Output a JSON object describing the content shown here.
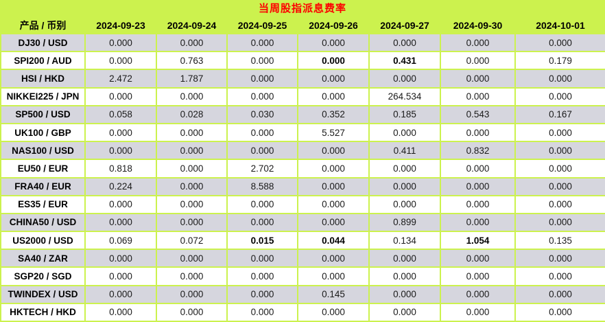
{
  "title": "当周股指派息费率",
  "colors": {
    "theme_green": "#ccf24e",
    "title_red": "#fe0000",
    "row_gray": "#d6d6de",
    "row_white": "#ffffff",
    "text_dark": "#1a1a1a"
  },
  "table": {
    "product_header": "产品 / 币别",
    "date_headers": [
      "2024-09-23",
      "2024-09-24",
      "2024-09-25",
      "2024-09-26",
      "2024-09-27",
      "2024-09-30",
      "2024-10-01"
    ],
    "rows": [
      {
        "product": "DJ30 / USD",
        "values": [
          "0.000",
          "0.000",
          "0.000",
          "0.000",
          "0.000",
          "0.000",
          "0.000"
        ],
        "bold": []
      },
      {
        "product": "SPI200 / AUD",
        "values": [
          "0.000",
          "0.763",
          "0.000",
          "0.000",
          "0.431",
          "0.000",
          "0.179"
        ],
        "bold": [
          3,
          4
        ]
      },
      {
        "product": "HSI / HKD",
        "values": [
          "2.472",
          "1.787",
          "0.000",
          "0.000",
          "0.000",
          "0.000",
          "0.000"
        ],
        "bold": []
      },
      {
        "product": "NIKKEI225 / JPN",
        "values": [
          "0.000",
          "0.000",
          "0.000",
          "0.000",
          "264.534",
          "0.000",
          "0.000"
        ],
        "bold": []
      },
      {
        "product": "SP500 / USD",
        "values": [
          "0.058",
          "0.028",
          "0.030",
          "0.352",
          "0.185",
          "0.543",
          "0.167"
        ],
        "bold": []
      },
      {
        "product": "UK100 / GBP",
        "values": [
          "0.000",
          "0.000",
          "0.000",
          "5.527",
          "0.000",
          "0.000",
          "0.000"
        ],
        "bold": []
      },
      {
        "product": "NAS100 / USD",
        "values": [
          "0.000",
          "0.000",
          "0.000",
          "0.000",
          "0.411",
          "0.832",
          "0.000"
        ],
        "bold": []
      },
      {
        "product": "EU50 / EUR",
        "values": [
          "0.818",
          "0.000",
          "2.702",
          "0.000",
          "0.000",
          "0.000",
          "0.000"
        ],
        "bold": []
      },
      {
        "product": "FRA40 / EUR",
        "values": [
          "0.224",
          "0.000",
          "8.588",
          "0.000",
          "0.000",
          "0.000",
          "0.000"
        ],
        "bold": []
      },
      {
        "product": "ES35 / EUR",
        "values": [
          "0.000",
          "0.000",
          "0.000",
          "0.000",
          "0.000",
          "0.000",
          "0.000"
        ],
        "bold": []
      },
      {
        "product": "CHINA50 / USD",
        "values": [
          "0.000",
          "0.000",
          "0.000",
          "0.000",
          "0.899",
          "0.000",
          "0.000"
        ],
        "bold": []
      },
      {
        "product": "US2000 / USD",
        "values": [
          "0.069",
          "0.072",
          "0.015",
          "0.044",
          "0.134",
          "1.054",
          "0.135"
        ],
        "bold": [
          2,
          3,
          5
        ]
      },
      {
        "product": "SA40 / ZAR",
        "values": [
          "0.000",
          "0.000",
          "0.000",
          "0.000",
          "0.000",
          "0.000",
          "0.000"
        ],
        "bold": []
      },
      {
        "product": "SGP20 / SGD",
        "values": [
          "0.000",
          "0.000",
          "0.000",
          "0.000",
          "0.000",
          "0.000",
          "0.000"
        ],
        "bold": []
      },
      {
        "product": "TWINDEX / USD",
        "values": [
          "0.000",
          "0.000",
          "0.000",
          "0.145",
          "0.000",
          "0.000",
          "0.000"
        ],
        "bold": []
      },
      {
        "product": "HKTECH / HKD",
        "values": [
          "0.000",
          "0.000",
          "0.000",
          "0.000",
          "0.000",
          "0.000",
          "0.000"
        ],
        "bold": []
      }
    ]
  }
}
